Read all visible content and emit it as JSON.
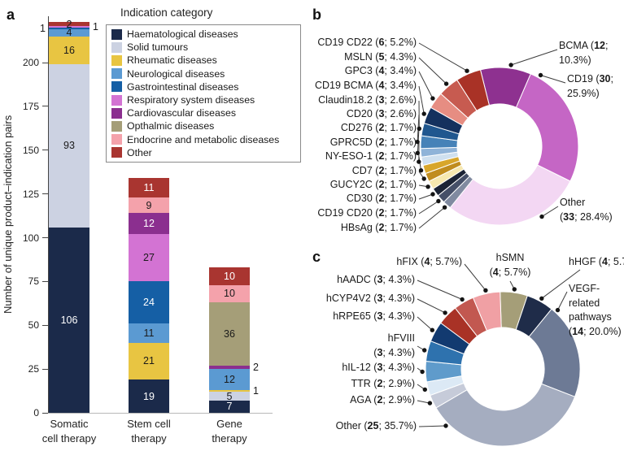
{
  "panels": {
    "a": "a",
    "b": "b",
    "c": "c"
  },
  "chart_data": [
    {
      "id": "bar_panel_a",
      "type": "bar",
      "title": "",
      "xlabel": "",
      "ylabel": "Number of unique product–indication pairs",
      "yticks": [
        0,
        25,
        50,
        75,
        100,
        125,
        150,
        175,
        200
      ],
      "ylim": [
        0,
        230
      ],
      "grid": false,
      "legend_title": "Indication category",
      "legend_position": "top-right",
      "indication_categories": [
        {
          "label": "Haematological diseases",
          "color": "#1b2a4a"
        },
        {
          "label": "Solid tumours",
          "color": "#ccd2e2"
        },
        {
          "label": "Rheumatic diseases",
          "color": "#e8c542"
        },
        {
          "label": "Neurological diseases",
          "color": "#5b9ad2"
        },
        {
          "label": "Gastrointestinal diseases",
          "color": "#155fa5"
        },
        {
          "label": "Respiratory system diseases",
          "color": "#d373d3"
        },
        {
          "label": "Cardiovascular diseases",
          "color": "#8b2f8f"
        },
        {
          "label": "Opthalmic diseases",
          "color": "#a59e78"
        },
        {
          "label": "Endocrine and metabolic diseases",
          "color": "#f4a2ab"
        },
        {
          "label": "Other",
          "color": "#a93530"
        }
      ],
      "bars": [
        {
          "category_lines": [
            "Somatic",
            "cell therapy"
          ],
          "total": 223,
          "segments": [
            {
              "cat": 0,
              "value": 106,
              "place": "inside",
              "text": "light"
            },
            {
              "cat": 1,
              "value": 93,
              "place": "inside",
              "text": "dark"
            },
            {
              "cat": 2,
              "value": 16,
              "place": "inside",
              "text": "dark"
            },
            {
              "cat": 3,
              "value": 4,
              "place": "inside",
              "text": "dark"
            },
            {
              "cat": 4,
              "value": 1,
              "place": "left",
              "text": "dark"
            },
            {
              "cat": 5,
              "value": 1,
              "place": "right",
              "text": "dark"
            },
            {
              "cat": 9,
              "value": 2,
              "place": "inside",
              "text": "dark"
            }
          ]
        },
        {
          "category_lines": [
            "Stem cell",
            "therapy"
          ],
          "total": 134,
          "segments": [
            {
              "cat": 0,
              "value": 19,
              "place": "inside",
              "text": "light"
            },
            {
              "cat": 2,
              "value": 21,
              "place": "inside",
              "text": "dark"
            },
            {
              "cat": 3,
              "value": 11,
              "place": "inside",
              "text": "dark"
            },
            {
              "cat": 4,
              "value": 24,
              "place": "inside",
              "text": "light"
            },
            {
              "cat": 5,
              "value": 27,
              "place": "inside",
              "text": "dark"
            },
            {
              "cat": 6,
              "value": 12,
              "place": "inside",
              "text": "light"
            },
            {
              "cat": 8,
              "value": 9,
              "place": "inside",
              "text": "dark"
            },
            {
              "cat": 9,
              "value": 11,
              "place": "inside",
              "text": "light"
            }
          ]
        },
        {
          "category_lines": [
            "Gene",
            "therapy"
          ],
          "total": 83,
          "segments": [
            {
              "cat": 0,
              "value": 7,
              "place": "inside",
              "text": "light"
            },
            {
              "cat": 1,
              "value": 5,
              "place": "inside",
              "text": "dark"
            },
            {
              "cat": 2,
              "value": 1,
              "place": "right",
              "text": "dark"
            },
            {
              "cat": 3,
              "value": 12,
              "place": "inside",
              "text": "dark"
            },
            {
              "cat": 6,
              "value": 2,
              "place": "right",
              "text": "dark"
            },
            {
              "cat": 7,
              "value": 36,
              "place": "inside",
              "text": "dark"
            },
            {
              "cat": 8,
              "value": 10,
              "place": "inside",
              "text": "dark"
            },
            {
              "cat": 9,
              "value": 10,
              "place": "inside",
              "text": "light"
            }
          ]
        }
      ]
    },
    {
      "id": "donut_panel_b",
      "type": "pie",
      "donut": true,
      "total": 116,
      "slices": [
        {
          "name": "BCMA",
          "count": 12,
          "pct": "10.3%",
          "color": "#8e3190"
        },
        {
          "name": "CD19",
          "count": 30,
          "pct": "25.9%",
          "color": "#c566c5"
        },
        {
          "name": "Other",
          "count": 33,
          "pct": "28.4%",
          "color": "#f3d7f3"
        },
        {
          "name": "HBsAg",
          "count": 2,
          "pct": "1.7%",
          "color": "#808aa0"
        },
        {
          "name": "CD19 CD20",
          "count": 2,
          "pct": "1.7%",
          "color": "#454f68"
        },
        {
          "name": "CD30",
          "count": 2,
          "pct": "1.7%",
          "color": "#1b2335"
        },
        {
          "name": "GUCY2C",
          "count": 2,
          "pct": "1.7%",
          "color": "#f6e8b0"
        },
        {
          "name": "CD7",
          "count": 2,
          "pct": "1.7%",
          "color": "#c08c1e"
        },
        {
          "name": "NY-ESO-1",
          "count": 2,
          "pct": "1.7%",
          "color": "#d8a62b"
        },
        {
          "name": "GPRC5D",
          "count": 2,
          "pct": "1.7%",
          "color": "#cfe0ef"
        },
        {
          "name": "CD276",
          "count": 2,
          "pct": "1.7%",
          "color": "#8fb3d8"
        },
        {
          "name": "CD20",
          "count": 3,
          "pct": "2.6%",
          "color": "#4682b8"
        },
        {
          "name": "Claudin18.2",
          "count": 3,
          "pct": "2.6%",
          "color": "#20578f"
        },
        {
          "name": "CD19 BCMA",
          "count": 4,
          "pct": "3.4%",
          "color": "#14315e"
        },
        {
          "name": "GPC3",
          "count": 4,
          "pct": "3.4%",
          "color": "#e68d82"
        },
        {
          "name": "MSLN",
          "count": 5,
          "pct": "4.3%",
          "color": "#c75b50"
        },
        {
          "name": "CD19 CD22",
          "count": 6,
          "pct": "5.2%",
          "color": "#a93226"
        }
      ]
    },
    {
      "id": "donut_panel_c",
      "type": "pie",
      "donut": true,
      "total": 70,
      "slices": [
        {
          "name": "hSMN",
          "count": 4,
          "pct": "5.7%",
          "color": "#a59e78"
        },
        {
          "name": "hHGF",
          "count": 4,
          "pct": "5.7%",
          "color": "#1f2c49"
        },
        {
          "name": "VEGF-related pathways",
          "count": 14,
          "pct": "20.0%",
          "color": "#6d7a95",
          "name_lines": [
            "VEGF-",
            "related",
            "pathways"
          ]
        },
        {
          "name": "Other",
          "count": 25,
          "pct": "35.7%",
          "color": "#a5adc0"
        },
        {
          "name": "AGA",
          "count": 2,
          "pct": "2.9%",
          "color": "#c6cbd9"
        },
        {
          "name": "TTR",
          "count": 2,
          "pct": "2.9%",
          "color": "#dce9f5"
        },
        {
          "name": "hIL-12",
          "count": 3,
          "pct": "4.3%",
          "color": "#5f9bcb"
        },
        {
          "name": "hFVIII",
          "count": 3,
          "pct": "4.3%",
          "color": "#2e72ae"
        },
        {
          "name": "hRPE65",
          "count": 3,
          "pct": "4.3%",
          "color": "#123a70"
        },
        {
          "name": "hCYP4V2",
          "count": 3,
          "pct": "4.3%",
          "color": "#a93226"
        },
        {
          "name": "hAADC",
          "count": 3,
          "pct": "4.3%",
          "color": "#c25850"
        },
        {
          "name": "hFIX",
          "count": 4,
          "pct": "5.7%",
          "color": "#f0a0a4"
        }
      ]
    }
  ]
}
